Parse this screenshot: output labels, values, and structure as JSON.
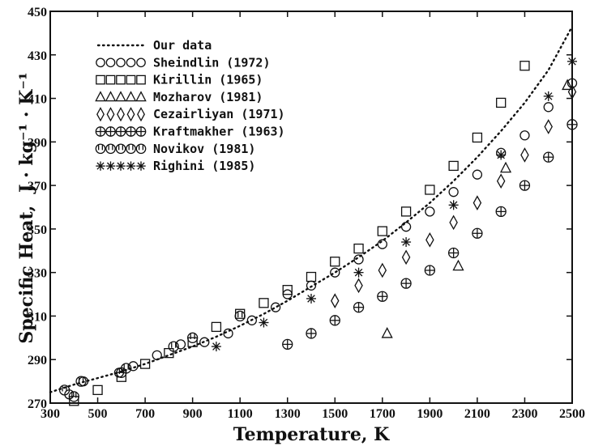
{
  "chart_data": {
    "type": "scatter",
    "title": "",
    "xlabel": "Temperature, K",
    "ylabel": "Specific Heat,",
    "ylabel_units": "J · kg⁻¹ · K⁻¹",
    "xlim": [
      300,
      2500
    ],
    "ylim": [
      270,
      450
    ],
    "xticks": [
      "300",
      "500",
      "700",
      "900",
      "1100",
      "1300",
      "1500",
      "1700",
      "1900",
      "2100",
      "2300",
      "2500"
    ],
    "yticks": [
      "270",
      "290",
      "310",
      "330",
      "350",
      "370",
      "390",
      "410",
      "430",
      "450"
    ],
    "legend_position": "top-left",
    "series": [
      {
        "name": "Our data",
        "marker": "dotted-line",
        "x": [
          300,
          400,
          500,
          600,
          700,
          800,
          900,
          1000,
          1100,
          1200,
          1300,
          1400,
          1500,
          1600,
          1700,
          1800,
          1900,
          2000,
          2100,
          2200,
          2300,
          2400,
          2500
        ],
        "y": [
          275,
          278.5,
          281.5,
          284.5,
          288,
          292,
          296,
          300.5,
          305.5,
          311,
          317,
          323.5,
          330,
          337,
          344.5,
          353,
          362,
          372,
          383,
          395,
          408,
          423,
          443
        ]
      },
      {
        "name": "Sheindlin (1972)",
        "marker": "circle",
        "x": [
          380,
          440,
          590,
          650,
          750,
          850,
          950,
          1050,
          1150,
          1250,
          1300,
          1400,
          1500,
          1600,
          1700,
          1800,
          1900,
          2000,
          2100,
          2200,
          2300,
          2400,
          2500
        ],
        "y": [
          274,
          280,
          284,
          287,
          292,
          297,
          298,
          302,
          308,
          314,
          320,
          324,
          330,
          336,
          343,
          351,
          358,
          367,
          375,
          385,
          393,
          406,
          417
        ]
      },
      {
        "name": "Kirillin (1965)",
        "marker": "square",
        "x": [
          400,
          500,
          600,
          700,
          800,
          900,
          1000,
          1100,
          1200,
          1300,
          1400,
          1500,
          1600,
          1700,
          1800,
          1900,
          2000,
          2100,
          2200,
          2300
        ],
        "y": [
          271,
          276,
          282,
          288,
          293,
          298,
          305,
          311,
          316,
          322,
          328,
          335,
          341,
          349,
          358,
          368,
          379,
          392,
          408,
          425
        ]
      },
      {
        "name": "Mozharov (1981)",
        "marker": "triangle",
        "x": [
          1720,
          2020,
          2220,
          2480
        ],
        "y": [
          302,
          333,
          378,
          416
        ]
      },
      {
        "name": "Cezairliyan (1971)",
        "marker": "diamond",
        "x": [
          1500,
          1600,
          1700,
          1800,
          1900,
          2000,
          2100,
          2200,
          2300,
          2400,
          2500
        ],
        "y": [
          317,
          324,
          331,
          337,
          345,
          353,
          362,
          372,
          384,
          397,
          413
        ]
      },
      {
        "name": "Kraftmakher (1963)",
        "marker": "circle-cross",
        "x": [
          1300,
          1400,
          1500,
          1600,
          1700,
          1800,
          1900,
          2000,
          2100,
          2200,
          2300,
          2400,
          2500
        ],
        "y": [
          297,
          302,
          308,
          314,
          319,
          325,
          331,
          339,
          348,
          358,
          370,
          383,
          398
        ]
      },
      {
        "name": "Novikov (1981)",
        "marker": "circle-bars",
        "x": [
          360,
          400,
          430,
          600,
          620,
          820,
          900,
          1100
        ],
        "y": [
          276,
          273,
          280,
          284,
          286,
          296,
          300,
          310
        ]
      },
      {
        "name": "Righini (1985)",
        "marker": "asterisk",
        "x": [
          1000,
          1200,
          1400,
          1600,
          1800,
          2000,
          2200,
          2400,
          2500
        ],
        "y": [
          296,
          307,
          318,
          330,
          344,
          361,
          384,
          411,
          427
        ]
      }
    ]
  }
}
